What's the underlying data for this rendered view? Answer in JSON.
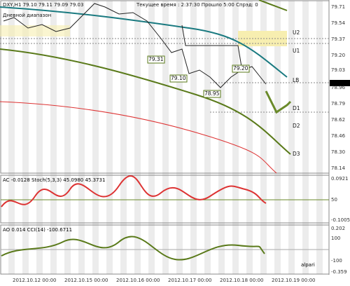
{
  "header": {
    "symbol": "DXY,H1  79.10 79.11 79.09 79.03",
    "range": "Дневной диапазон",
    "clock": "Текущее время : 2:37:30 Прошло 5:00 Спрэд: 0"
  },
  "price_axis": [
    "79.71",
    "79.54",
    "79.37",
    "79.20",
    "79.03",
    "78.96",
    "78.79",
    "78.62",
    "78.46",
    "78.30",
    "78.14"
  ],
  "levels": [
    "U2",
    "U1",
    "LB",
    "D1",
    "D2",
    "D3"
  ],
  "price_labels": [
    "79.31",
    "79.10",
    "78.95",
    "79.20"
  ],
  "ac_panel": {
    "title": "AC -0.0128  Stoch(5,3,3) 45.0980 45.3731",
    "axis": [
      "0.0921",
      "50",
      "-0.1005"
    ]
  },
  "ao_panel": {
    "title": "AO 0.014  CCI(14) -100.6711",
    "axis": [
      "0.202",
      "100",
      "-100",
      "-0.359"
    ]
  },
  "dates": [
    "2012.10.12 00:00",
    "2012.10.15 00:00",
    "2012.10.16 00:00",
    "2012.10.17 00:00",
    "2012.10.18 00:00",
    "2012.10.19 00:00"
  ],
  "logo": "alpari"
}
